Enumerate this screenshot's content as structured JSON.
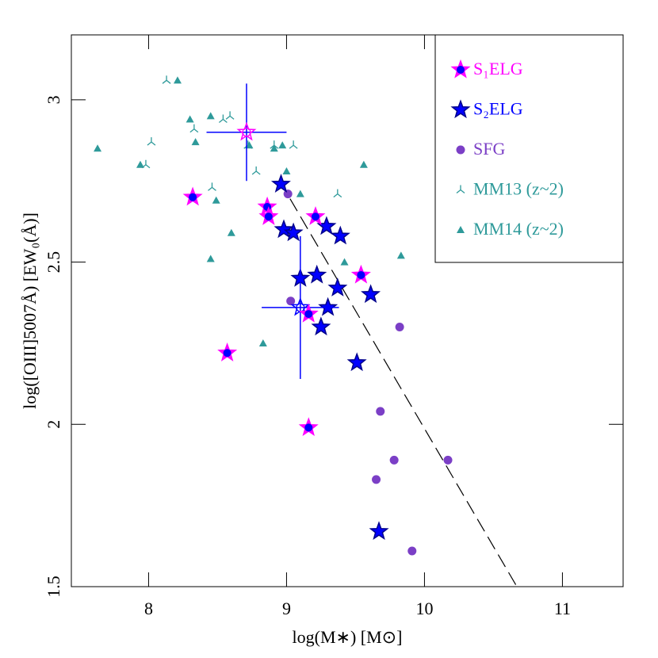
{
  "chart_data": {
    "type": "scatter",
    "x_label": "log(M∗) [M⊙]",
    "y_label": "log([OIII]5007Å) [EW₀(Å)]",
    "xlim": [
      7.44,
      11.44
    ],
    "ylim": [
      1.5,
      3.2
    ],
    "xticks": [
      8,
      9,
      10,
      11
    ],
    "yticks": [
      1.5,
      2,
      2.5,
      3
    ],
    "legend": "upper right",
    "line": {
      "x": [
        8.95,
        10.67
      ],
      "y": [
        2.75,
        1.5
      ],
      "color": "#000000",
      "dash": true
    },
    "series": [
      {
        "name": "S₁ELG",
        "marker": "star",
        "color": "#ff00ff",
        "dot_color": "#0000ff",
        "x": [
          8.32,
          8.86,
          8.87,
          9.21,
          9.54,
          8.57,
          9.16,
          9.16
        ],
        "y": [
          2.7,
          2.67,
          2.64,
          2.64,
          2.46,
          2.22,
          2.34,
          1.99
        ],
        "median": {
          "x": 8.71,
          "y": 2.9,
          "xerr": 0.29,
          "yerr": 0.15
        }
      },
      {
        "name": "S₂ELG",
        "marker": "star",
        "color": "#0000ff",
        "x": [
          8.96,
          8.98,
          9.05,
          9.29,
          9.39,
          9.1,
          9.22,
          9.37,
          9.3,
          9.61,
          9.25,
          9.51,
          9.67
        ],
        "y": [
          2.74,
          2.6,
          2.59,
          2.61,
          2.58,
          2.45,
          2.46,
          2.42,
          2.36,
          2.4,
          2.3,
          2.19,
          1.67
        ],
        "median": {
          "x": 9.1,
          "y": 2.36,
          "xerr": 0.28,
          "yerr": 0.22
        }
      },
      {
        "name": "SFG",
        "marker": "circle",
        "color": "#7b3fc6",
        "x": [
          9.01,
          9.03,
          9.82,
          9.68,
          9.78,
          9.65,
          10.17,
          9.91
        ],
        "y": [
          2.71,
          2.38,
          2.3,
          2.04,
          1.89,
          1.83,
          1.89,
          1.61
        ]
      },
      {
        "name": "MM13 (z~2)",
        "marker": "tripod",
        "color": "#2e9a9a",
        "x": [
          8.13,
          8.02,
          7.98,
          8.33,
          8.54,
          8.59,
          8.46,
          8.72,
          8.78,
          9.05,
          9.37,
          8.91
        ],
        "y": [
          3.06,
          2.87,
          2.8,
          2.91,
          2.94,
          2.95,
          2.73,
          2.86,
          2.78,
          2.86,
          2.71,
          2.86
        ]
      },
      {
        "name": "MM14 (z~2)",
        "marker": "triangle",
        "color": "#2e9a9a",
        "x": [
          7.63,
          7.94,
          8.21,
          8.3,
          8.34,
          8.45,
          8.49,
          8.6,
          8.45,
          8.73,
          8.97,
          8.91,
          9.0,
          9.1,
          9.56,
          9.83,
          9.42,
          8.83
        ],
        "y": [
          2.85,
          2.8,
          3.06,
          2.94,
          2.87,
          2.95,
          2.69,
          2.59,
          2.51,
          2.86,
          2.86,
          2.85,
          2.78,
          2.71,
          2.8,
          2.52,
          2.5,
          2.25
        ]
      }
    ]
  }
}
